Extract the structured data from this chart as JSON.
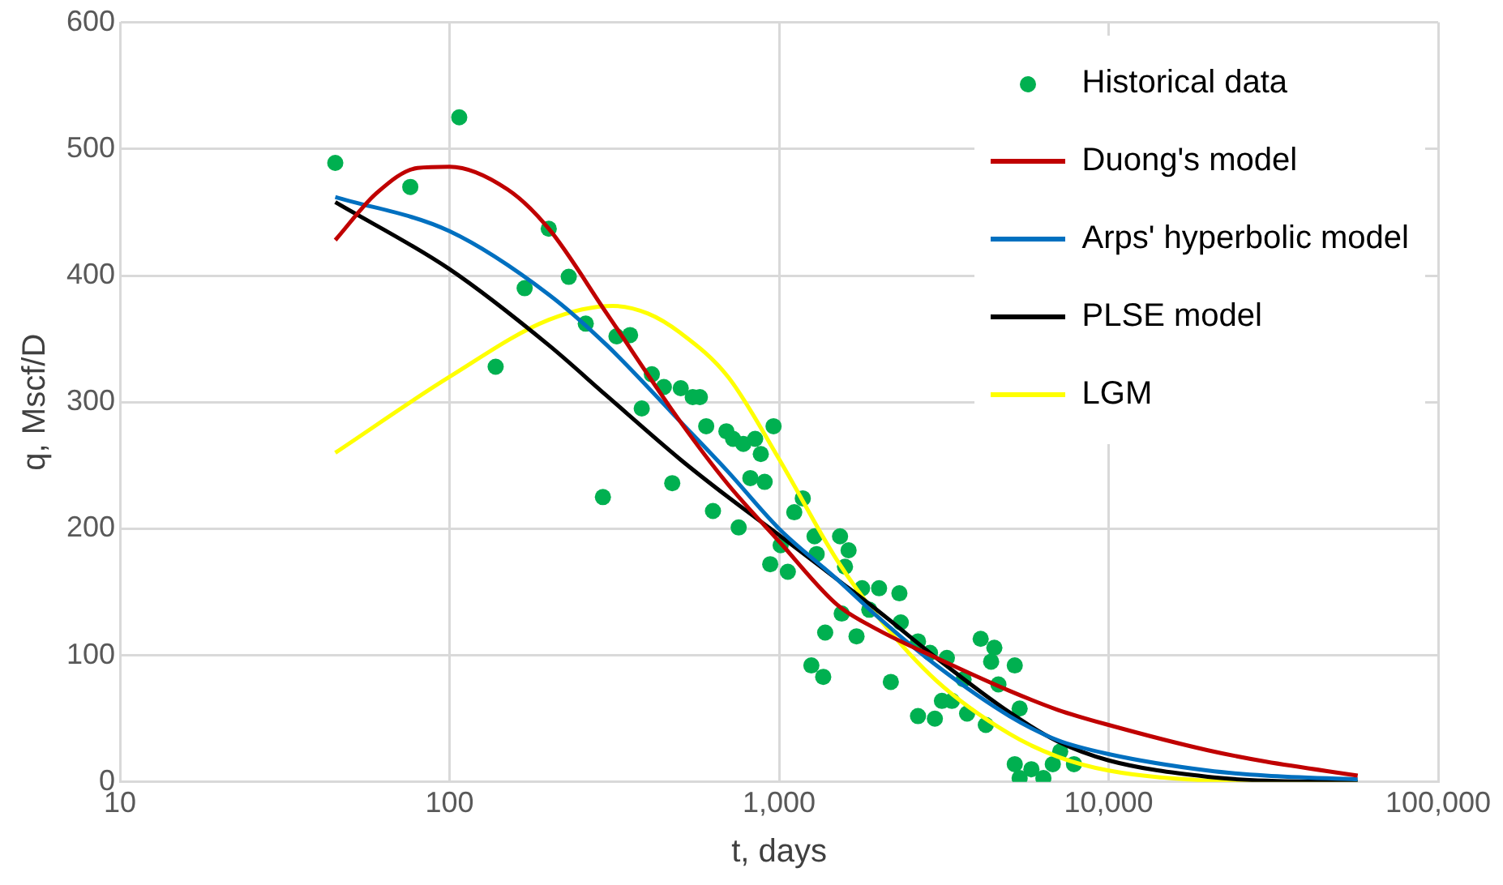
{
  "chart_data": {
    "type": "scatter",
    "xlabel": "t, days",
    "ylabel": "q, Mscf/D",
    "log": "x",
    "grid": true,
    "legend": "top right",
    "xlim": [
      10,
      100000
    ],
    "xticks": [
      10,
      100,
      {
        "value": 1000,
        "label": "1,000"
      },
      {
        "value": 10000,
        "label": "10,000"
      },
      {
        "value": 100000,
        "label": "100,000"
      }
    ],
    "ylim": [
      0,
      600
    ],
    "yticks": [
      0,
      100,
      200,
      300,
      400,
      500,
      600
    ],
    "series": [
      {
        "name": "Historical data",
        "marker": "circle",
        "color": "#00b050",
        "x": [
          45,
          76,
          107,
          200,
          230,
          169,
          138,
          259,
          321,
          353,
          292,
          411,
          447,
          503,
          547,
          575,
          383,
          474,
          601,
          630,
          754,
          692,
          725,
          779,
          846,
          880,
          962,
          818,
          904,
          940,
          1063,
          1011,
          1112,
          1180,
          1281,
          1531,
          1625,
          1585,
          1300,
          1253,
          1361,
          1380,
          1549,
          1786,
          2011,
          2318,
          1878,
          1718,
          2183,
          2640,
          2870,
          3230,
          2640,
          2970,
          3345,
          3630,
          4090,
          4500,
          4400,
          5190,
          4630,
          5370,
          4240,
          5190,
          5830,
          7130,
          6770,
          6340,
          5370,
          7850,
          3720,
          3120,
          2340
        ],
        "values": [
          489,
          470,
          525,
          437,
          399,
          390,
          328,
          362,
          352,
          353,
          225,
          322,
          312,
          311,
          304,
          304,
          295,
          236,
          281,
          214,
          201,
          277,
          271,
          267,
          271,
          259,
          281,
          240,
          237,
          172,
          166,
          187,
          213,
          224,
          194,
          194,
          183,
          170,
          180,
          92,
          83,
          118,
          133,
          153,
          153,
          149,
          136,
          115,
          79,
          111,
          102,
          98,
          52,
          50,
          64,
          81,
          113,
          106,
          95,
          92,
          77,
          58,
          45,
          14,
          10,
          24,
          14,
          3,
          3,
          14,
          54,
          64,
          126
        ]
      },
      {
        "name": "Duong's model",
        "type": "line",
        "marker": "none",
        "color": "#c00000",
        "x": [
          45,
          60,
          80,
          100,
          150,
          200,
          300,
          500,
          700,
          1000,
          1500,
          2000,
          3000,
          5000,
          7000,
          10000,
          20000,
          30000,
          57000
        ],
        "values": [
          428,
          465,
          485,
          486,
          468,
          437,
          370,
          285,
          235,
          190,
          140,
          120,
          98,
          72,
          57,
          45,
          25,
          16,
          5
        ]
      },
      {
        "name": "Arps' hyperbolic model",
        "type": "line",
        "marker": "none",
        "color": "#0070c0",
        "x": [
          45,
          100,
          200,
          300,
          500,
          700,
          1000,
          1500,
          2000,
          3000,
          5000,
          7000,
          10000,
          20000,
          30000,
          57000
        ],
        "values": [
          462,
          435,
          385,
          345,
          285,
          245,
          200,
          160,
          130,
          92,
          52,
          33,
          22,
          9,
          5,
          2
        ]
      },
      {
        "name": "PLSE model",
        "type": "line",
        "marker": "none",
        "color": "#000000",
        "x": [
          45,
          100,
          200,
          300,
          500,
          700,
          1000,
          1500,
          2000,
          3000,
          5000,
          7000,
          10000,
          20000,
          30000,
          57000
        ],
        "values": [
          458,
          405,
          345,
          305,
          255,
          225,
          195,
          160,
          135,
          98,
          55,
          32,
          17,
          4,
          1,
          0
        ]
      },
      {
        "name": "LGM",
        "type": "line",
        "marker": "none",
        "color": "#ffff00",
        "x": [
          45,
          100,
          200,
          313,
          400,
          500,
          700,
          1000,
          1500,
          2000,
          3000,
          5000,
          7000,
          10000,
          20000,
          30000,
          57000
        ],
        "values": [
          260,
          320,
          365,
          376,
          370,
          355,
          320,
          255,
          175,
          130,
          80,
          38,
          20,
          9,
          1,
          0,
          0
        ]
      }
    ]
  }
}
